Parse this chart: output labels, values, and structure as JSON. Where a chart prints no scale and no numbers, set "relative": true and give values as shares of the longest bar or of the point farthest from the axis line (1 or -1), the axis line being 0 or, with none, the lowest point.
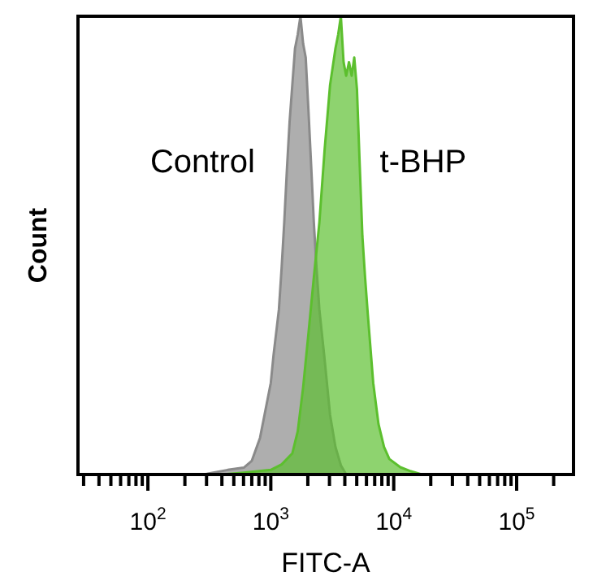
{
  "chart_data": {
    "type": "area",
    "xlabel": "FITC-A",
    "ylabel": "Count",
    "relative": true,
    "log": "x",
    "grid": false,
    "legend": false,
    "marker": "none",
    "xlim": [
      27,
      290000
    ],
    "xticks": [
      {
        "value": 30,
        "label": null
      },
      {
        "value": 40,
        "label": null
      },
      {
        "value": 50,
        "label": null
      },
      {
        "value": 60,
        "label": null
      },
      {
        "value": 70,
        "label": null
      },
      {
        "value": 80,
        "label": null
      },
      {
        "value": 90,
        "label": null
      },
      {
        "value": 100,
        "label": "10$^{2}$"
      },
      {
        "value": 200,
        "label": null
      },
      {
        "value": 300,
        "label": null
      },
      {
        "value": 400,
        "label": null
      },
      {
        "value": 500,
        "label": null
      },
      {
        "value": 600,
        "label": null
      },
      {
        "value": 700,
        "label": null
      },
      {
        "value": 800,
        "label": null
      },
      {
        "value": 900,
        "label": null
      },
      {
        "value": 1000,
        "label": "10$^{3}$"
      },
      {
        "value": 2000,
        "label": null
      },
      {
        "value": 3000,
        "label": null
      },
      {
        "value": 4000,
        "label": null
      },
      {
        "value": 5000,
        "label": null
      },
      {
        "value": 6000,
        "label": null
      },
      {
        "value": 7000,
        "label": null
      },
      {
        "value": 8000,
        "label": null
      },
      {
        "value": 9000,
        "label": null
      },
      {
        "value": 10000,
        "label": "10$^{4}$"
      },
      {
        "value": 20000,
        "label": null
      },
      {
        "value": 30000,
        "label": null
      },
      {
        "value": 40000,
        "label": null
      },
      {
        "value": 50000,
        "label": null
      },
      {
        "value": 60000,
        "label": null
      },
      {
        "value": 70000,
        "label": null
      },
      {
        "value": 80000,
        "label": null
      },
      {
        "value": 90000,
        "label": null
      },
      {
        "value": 100000,
        "label": "10$^{5}$"
      },
      {
        "value": 200000,
        "label": null
      }
    ],
    "series": [
      {
        "name": "Control",
        "color": "#8a8a8a",
        "x": [
          282,
          446,
          603,
          701,
          817,
          904,
          1000,
          1052,
          1164,
          1224,
          1286,
          1355,
          1422,
          1496,
          1574,
          1656,
          1742,
          1832,
          1923,
          2028,
          2133,
          2239,
          2355,
          2483,
          2742,
          3034,
          3357,
          3715,
          4102
        ],
        "values": [
          0,
          0.01,
          0.015,
          0.03,
          0.08,
          0.14,
          0.2,
          0.26,
          0.36,
          0.45,
          0.55,
          0.67,
          0.77,
          0.85,
          0.93,
          0.96,
          1.0,
          0.94,
          0.91,
          0.79,
          0.67,
          0.55,
          0.45,
          0.36,
          0.25,
          0.13,
          0.06,
          0.02,
          0
        ]
      },
      {
        "name": "t-BHP",
        "color": "#5cbf2e",
        "x": [
          403,
          603,
          1000,
          1224,
          1496,
          1656,
          1832,
          2028,
          2239,
          2483,
          2742,
          3034,
          3357,
          3532,
          3715,
          3908,
          4102,
          4325,
          4550,
          4775,
          5023,
          5297,
          5560,
          5848,
          6152,
          6808,
          7516,
          8337,
          9204,
          11300,
          13800,
          16900
        ],
        "values": [
          0,
          0.004,
          0.01,
          0.022,
          0.046,
          0.094,
          0.19,
          0.31,
          0.43,
          0.55,
          0.71,
          0.85,
          0.93,
          0.96,
          1.0,
          0.9,
          0.87,
          0.9,
          0.87,
          0.91,
          0.84,
          0.67,
          0.52,
          0.43,
          0.35,
          0.2,
          0.11,
          0.06,
          0.034,
          0.016,
          0.007,
          0
        ]
      }
    ]
  }
}
